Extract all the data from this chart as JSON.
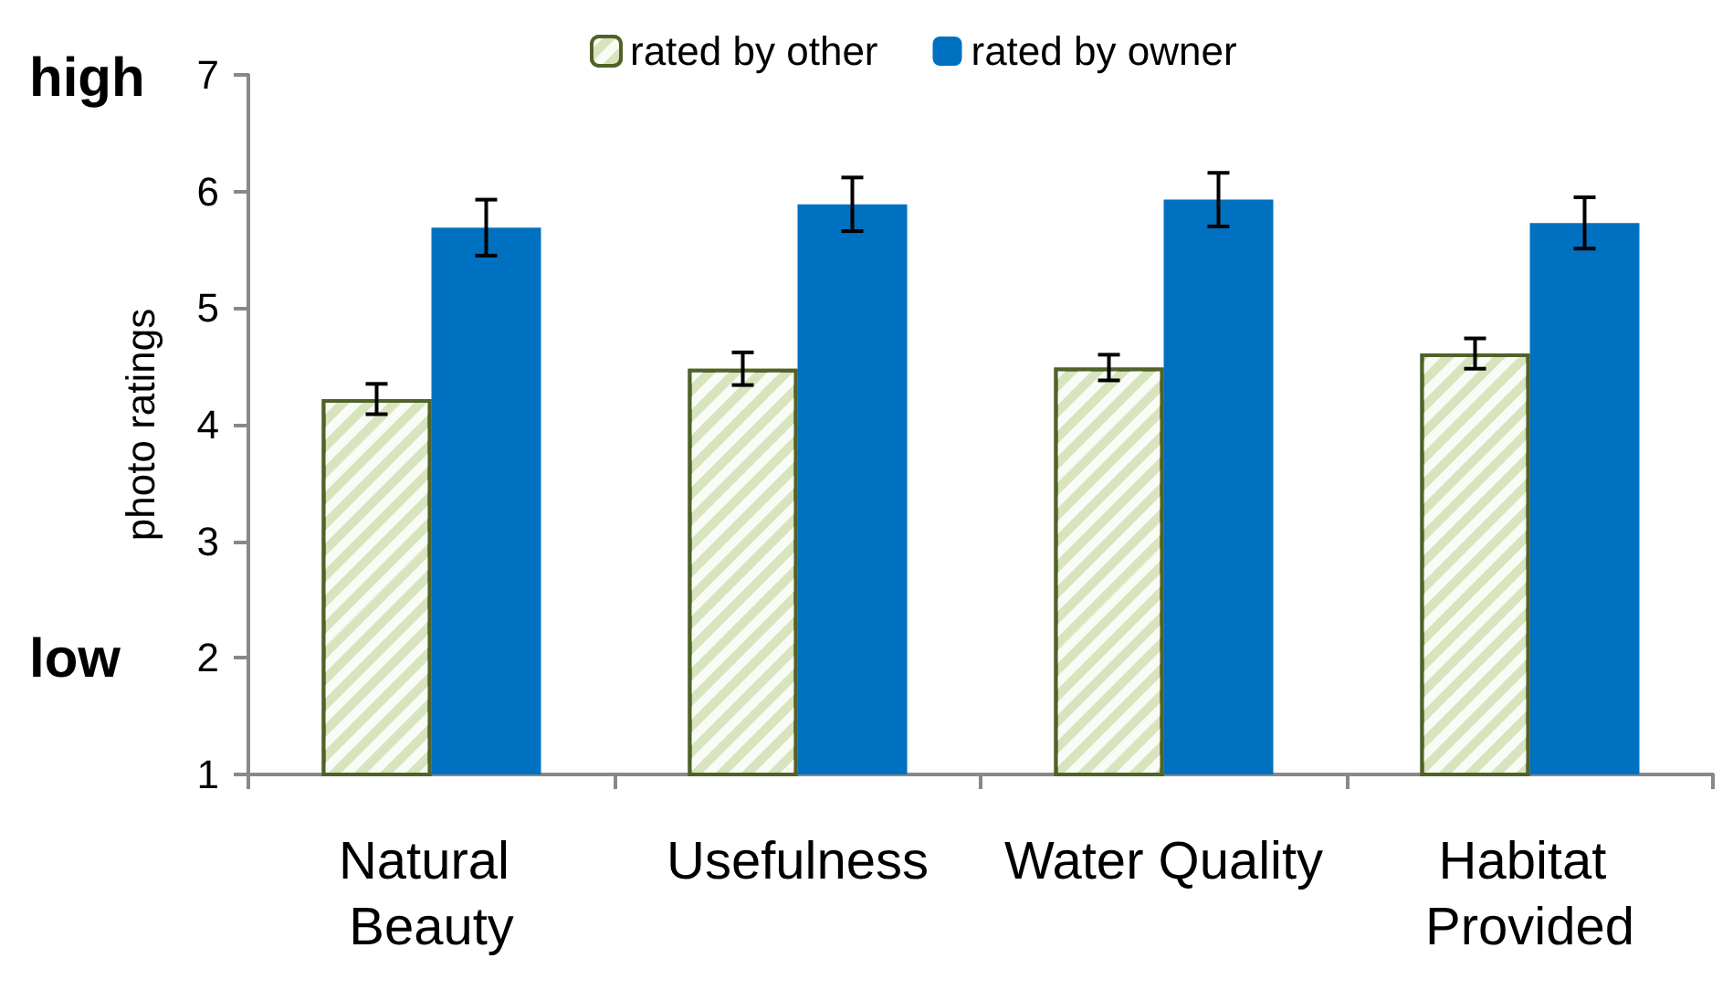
{
  "chart_data": {
    "type": "bar",
    "ylabel": "photo ratings",
    "categories": [
      "Natural Beauty",
      "Usefulness",
      "Water Quality",
      "Habitat Provided"
    ],
    "series": [
      {
        "name": "rated by other",
        "color": "#d7e4bd",
        "values": [
          4.22,
          4.48,
          4.49,
          4.61
        ],
        "errors": [
          0.13,
          0.14,
          0.11,
          0.13
        ]
      },
      {
        "name": "rated by owner",
        "color": "#0070c0",
        "values": [
          5.69,
          5.89,
          5.93,
          5.73
        ],
        "errors": [
          0.24,
          0.23,
          0.23,
          0.22
        ]
      }
    ],
    "ylim": [
      1,
      7
    ],
    "yticks": [
      1,
      2,
      3,
      4,
      5,
      6,
      7
    ],
    "grid": false,
    "legend": "top",
    "annotations": [
      "high",
      "low"
    ]
  }
}
